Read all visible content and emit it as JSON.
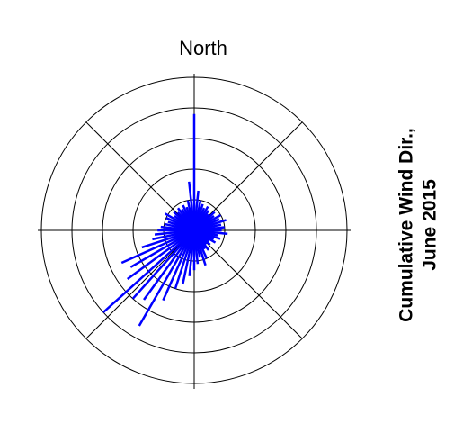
{
  "chart_data": {
    "type": "polar",
    "title": "North",
    "annotations": [
      "Cumulative Wind Dir.,",
      "June 2015"
    ],
    "x": [
      0,
      6,
      12,
      18,
      24,
      30,
      36,
      42,
      48,
      54,
      60,
      66,
      72,
      78,
      84,
      90,
      96,
      102,
      108,
      114,
      120,
      126,
      132,
      138,
      144,
      150,
      156,
      162,
      168,
      174,
      180,
      186,
      192,
      198,
      204,
      210,
      216,
      222,
      228,
      234,
      240,
      246,
      252,
      258,
      264,
      270,
      276,
      282,
      288,
      294,
      300,
      306,
      312,
      318,
      324,
      330,
      336,
      342,
      348,
      354
    ],
    "values": [
      3.8,
      1.3,
      1.0,
      0.9,
      0.8,
      0.9,
      0.8,
      0.7,
      0.9,
      0.8,
      1.0,
      0.9,
      1.1,
      0.9,
      1.0,
      0.9,
      1.1,
      0.8,
      0.9,
      0.7,
      0.8,
      0.6,
      0.7,
      0.6,
      0.8,
      0.7,
      1.0,
      1.2,
      0.9,
      1.1,
      1.3,
      1.5,
      1.8,
      2.0,
      2.5,
      3.6,
      2.8,
      3.0,
      4.0,
      2.7,
      2.4,
      2.6,
      1.8,
      1.4,
      1.3,
      1.2,
      1.1,
      1.0,
      0.9,
      1.0,
      1.1,
      0.8,
      0.9,
      0.8,
      0.9,
      0.8,
      0.9,
      0.8,
      1.0,
      1.6
    ],
    "color": "#0000ff",
    "xlim": [
      0,
      360
    ],
    "rlim": [
      0,
      5
    ],
    "rticks": [
      1,
      2,
      3,
      4,
      5
    ],
    "grid": true
  }
}
